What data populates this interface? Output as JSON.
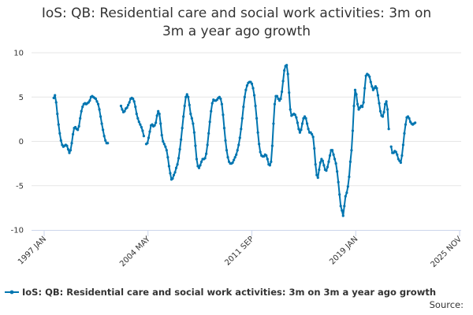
{
  "chart_data": {
    "type": "line",
    "title": "IoS: QB: Residential care and social work activities: 3m on 3m a year ago growth",
    "xlabel": "",
    "ylabel": "",
    "x_tick_labels": [
      "1997 JAN",
      "2004 MAY",
      "2011 SEP",
      "2019 JAN",
      "2025 NOV"
    ],
    "y_ticks": [
      10,
      5,
      0,
      -5,
      -10
    ],
    "ylim": [
      -10,
      10
    ],
    "xlim": [
      "1997-01",
      "2025-11"
    ],
    "grid": true,
    "legend_position": "bottom",
    "source_label": "Source:",
    "series": [
      {
        "name": "IoS: QB: Residential care and social work activities: 3m on 3m a year ago growth",
        "color": "#0075b0",
        "points": [
          [
            "1997-09",
            4.9
          ],
          [
            "1997-10",
            5.2
          ],
          [
            "1997-11",
            4.4
          ],
          [
            "1997-12",
            3.1
          ],
          [
            "1998-01",
            1.9
          ],
          [
            "1998-02",
            0.9
          ],
          [
            "1998-03",
            0.1
          ],
          [
            "1998-04",
            -0.4
          ],
          [
            "1998-05",
            -0.6
          ],
          [
            "1998-06",
            -0.5
          ],
          [
            "1998-07",
            -0.4
          ],
          [
            "1998-08",
            -0.5
          ],
          [
            "1998-09",
            -0.9
          ],
          [
            "1998-10",
            -1.3
          ],
          [
            "1998-11",
            -1.0
          ],
          [
            "1998-12",
            -0.2
          ],
          [
            "1999-01",
            0.8
          ],
          [
            "1999-02",
            1.5
          ],
          [
            "1999-03",
            1.6
          ],
          [
            "1999-04",
            1.4
          ],
          [
            "1999-05",
            1.3
          ],
          [
            "1999-06",
            1.7
          ],
          [
            "1999-07",
            2.6
          ],
          [
            "1999-08",
            3.4
          ],
          [
            "1999-09",
            3.9
          ],
          [
            "1999-10",
            4.2
          ],
          [
            "1999-11",
            4.3
          ],
          [
            "1999-12",
            4.2
          ],
          [
            "2000-01",
            4.3
          ],
          [
            "2000-02",
            4.4
          ],
          [
            "2000-03",
            4.6
          ],
          [
            "2000-04",
            5.0
          ],
          [
            "2000-05",
            5.1
          ],
          [
            "2000-06",
            5.0
          ],
          [
            "2000-07",
            4.9
          ],
          [
            "2000-08",
            4.8
          ],
          [
            "2000-09",
            4.5
          ],
          [
            "2000-10",
            4.2
          ],
          [
            "2000-11",
            3.6
          ],
          [
            "2000-12",
            2.8
          ],
          [
            "2001-01",
            2.0
          ],
          [
            "2001-02",
            1.3
          ],
          [
            "2001-03",
            0.6
          ],
          [
            "2001-04",
            0.1
          ],
          [
            "2001-05",
            -0.2
          ],
          [
            "2001-06",
            -0.2
          ],
          [
            "2002-05",
            4.0
          ],
          [
            "2002-06",
            3.6
          ],
          [
            "2002-07",
            3.3
          ],
          [
            "2002-08",
            3.4
          ],
          [
            "2002-09",
            3.7
          ],
          [
            "2002-10",
            3.8
          ],
          [
            "2002-11",
            4.1
          ],
          [
            "2002-12",
            4.4
          ],
          [
            "2003-01",
            4.8
          ],
          [
            "2003-02",
            4.9
          ],
          [
            "2003-03",
            4.8
          ],
          [
            "2003-04",
            4.5
          ],
          [
            "2003-05",
            3.9
          ],
          [
            "2003-06",
            3.1
          ],
          [
            "2003-07",
            2.6
          ],
          [
            "2003-08",
            2.2
          ],
          [
            "2003-09",
            1.9
          ],
          [
            "2003-10",
            1.6
          ],
          [
            "2003-11",
            1.2
          ],
          [
            "2003-12",
            0.6
          ],
          [
            "2004-02",
            -0.3
          ],
          [
            "2004-03",
            -0.2
          ],
          [
            "2004-04",
            0.4
          ],
          [
            "2004-05",
            1.1
          ],
          [
            "2004-06",
            1.8
          ],
          [
            "2004-07",
            1.9
          ],
          [
            "2004-08",
            1.7
          ],
          [
            "2004-09",
            1.8
          ],
          [
            "2004-10",
            2.1
          ],
          [
            "2004-11",
            2.9
          ],
          [
            "2004-12",
            3.4
          ],
          [
            "2005-01",
            3.1
          ],
          [
            "2005-02",
            2.0
          ],
          [
            "2005-03",
            0.7
          ],
          [
            "2005-04",
            0.0
          ],
          [
            "2005-05",
            -0.3
          ],
          [
            "2005-06",
            -0.6
          ],
          [
            "2005-07",
            -1.0
          ],
          [
            "2005-08",
            -1.8
          ],
          [
            "2005-09",
            -2.8
          ],
          [
            "2005-10",
            -3.6
          ],
          [
            "2005-11",
            -4.3
          ],
          [
            "2005-12",
            -4.2
          ],
          [
            "2006-01",
            -3.8
          ],
          [
            "2006-02",
            -3.5
          ],
          [
            "2006-03",
            -3.0
          ],
          [
            "2006-04",
            -2.6
          ],
          [
            "2006-05",
            -1.9
          ],
          [
            "2006-06",
            -0.9
          ],
          [
            "2006-07",
            0.2
          ],
          [
            "2006-08",
            1.5
          ],
          [
            "2006-09",
            2.8
          ],
          [
            "2006-10",
            4.0
          ],
          [
            "2006-11",
            5.0
          ],
          [
            "2006-12",
            5.3
          ],
          [
            "2007-01",
            5.0
          ],
          [
            "2007-02",
            4.1
          ],
          [
            "2007-03",
            3.1
          ],
          [
            "2007-04",
            2.6
          ],
          [
            "2007-05",
            2.0
          ],
          [
            "2007-06",
            1.0
          ],
          [
            "2007-07",
            -0.5
          ],
          [
            "2007-08",
            -2.0
          ],
          [
            "2007-09",
            -2.8
          ],
          [
            "2007-10",
            -3.0
          ],
          [
            "2007-11",
            -2.7
          ],
          [
            "2007-12",
            -2.3
          ],
          [
            "2008-01",
            -2.0
          ],
          [
            "2008-02",
            -2.0
          ],
          [
            "2008-03",
            -1.9
          ],
          [
            "2008-04",
            -1.4
          ],
          [
            "2008-05",
            -0.4
          ],
          [
            "2008-06",
            0.9
          ],
          [
            "2008-07",
            2.2
          ],
          [
            "2008-08",
            3.4
          ],
          [
            "2008-09",
            4.3
          ],
          [
            "2008-10",
            4.7
          ],
          [
            "2008-11",
            4.6
          ],
          [
            "2008-12",
            4.6
          ],
          [
            "2009-01",
            4.7
          ],
          [
            "2009-02",
            4.9
          ],
          [
            "2009-03",
            5.0
          ],
          [
            "2009-04",
            4.8
          ],
          [
            "2009-05",
            4.2
          ],
          [
            "2009-06",
            3.0
          ],
          [
            "2009-07",
            1.5
          ],
          [
            "2009-08",
            0.1
          ],
          [
            "2009-09",
            -1.0
          ],
          [
            "2009-10",
            -1.8
          ],
          [
            "2009-11",
            -2.3
          ],
          [
            "2009-12",
            -2.5
          ],
          [
            "2010-01",
            -2.5
          ],
          [
            "2010-02",
            -2.4
          ],
          [
            "2010-03",
            -2.1
          ],
          [
            "2010-04",
            -1.8
          ],
          [
            "2010-05",
            -1.5
          ],
          [
            "2010-06",
            -1.0
          ],
          [
            "2010-07",
            -0.4
          ],
          [
            "2010-08",
            0.4
          ],
          [
            "2010-09",
            1.4
          ],
          [
            "2010-10",
            2.6
          ],
          [
            "2010-11",
            3.9
          ],
          [
            "2010-12",
            5.0
          ],
          [
            "2011-01",
            5.8
          ],
          [
            "2011-02",
            6.3
          ],
          [
            "2011-03",
            6.6
          ],
          [
            "2011-04",
            6.7
          ],
          [
            "2011-05",
            6.7
          ],
          [
            "2011-06",
            6.5
          ],
          [
            "2011-07",
            6.0
          ],
          [
            "2011-08",
            5.2
          ],
          [
            "2011-09",
            4.0
          ],
          [
            "2011-10",
            2.6
          ],
          [
            "2011-11",
            1.0
          ],
          [
            "2011-12",
            -0.3
          ],
          [
            "2012-01",
            -1.2
          ],
          [
            "2012-02",
            -1.6
          ],
          [
            "2012-03",
            -1.7
          ],
          [
            "2012-04",
            -1.7
          ],
          [
            "2012-05",
            -1.5
          ],
          [
            "2012-06",
            -1.6
          ],
          [
            "2012-07",
            -2.0
          ],
          [
            "2012-08",
            -2.6
          ],
          [
            "2012-09",
            -2.7
          ],
          [
            "2012-10",
            -2.3
          ],
          [
            "2012-11",
            -0.5
          ],
          [
            "2012-12",
            2.0
          ],
          [
            "2013-01",
            4.2
          ],
          [
            "2013-02",
            5.1
          ],
          [
            "2013-03",
            5.1
          ],
          [
            "2013-04",
            4.8
          ],
          [
            "2013-05",
            4.6
          ],
          [
            "2013-06",
            4.8
          ],
          [
            "2013-07",
            5.6
          ],
          [
            "2013-08",
            6.8
          ],
          [
            "2013-09",
            8.0
          ],
          [
            "2013-10",
            8.5
          ],
          [
            "2013-11",
            8.6
          ],
          [
            "2013-12",
            7.6
          ],
          [
            "2014-01",
            5.5
          ],
          [
            "2014-02",
            3.6
          ],
          [
            "2014-03",
            2.9
          ],
          [
            "2014-04",
            3.0
          ],
          [
            "2014-05",
            3.1
          ],
          [
            "2014-06",
            3.0
          ],
          [
            "2014-07",
            2.7
          ],
          [
            "2014-08",
            2.1
          ],
          [
            "2014-09",
            1.4
          ],
          [
            "2014-10",
            1.0
          ],
          [
            "2014-11",
            1.3
          ],
          [
            "2014-12",
            2.0
          ],
          [
            "2015-01",
            2.6
          ],
          [
            "2015-02",
            2.8
          ],
          [
            "2015-03",
            2.6
          ],
          [
            "2015-04",
            2.0
          ],
          [
            "2015-05",
            1.4
          ],
          [
            "2015-06",
            1.0
          ],
          [
            "2015-07",
            1.0
          ],
          [
            "2015-08",
            0.8
          ],
          [
            "2015-09",
            0.5
          ],
          [
            "2015-10",
            -0.8
          ],
          [
            "2015-11",
            -2.6
          ],
          [
            "2015-12",
            -3.8
          ],
          [
            "2016-01",
            -4.1
          ],
          [
            "2016-02",
            -3.2
          ],
          [
            "2016-03",
            -2.4
          ],
          [
            "2016-04",
            -2.0
          ],
          [
            "2016-05",
            -2.2
          ],
          [
            "2016-06",
            -2.7
          ],
          [
            "2016-07",
            -3.2
          ],
          [
            "2016-08",
            -3.3
          ],
          [
            "2016-09",
            -2.9
          ],
          [
            "2016-10",
            -2.3
          ],
          [
            "2016-11",
            -1.6
          ],
          [
            "2016-12",
            -1.0
          ],
          [
            "2017-01",
            -1.0
          ],
          [
            "2017-02",
            -1.5
          ],
          [
            "2017-03",
            -2.0
          ],
          [
            "2017-04",
            -2.5
          ],
          [
            "2017-05",
            -3.4
          ],
          [
            "2017-06",
            -4.6
          ],
          [
            "2017-07",
            -6.0
          ],
          [
            "2017-08",
            -7.3
          ],
          [
            "2017-09",
            -7.8
          ],
          [
            "2017-10",
            -8.4
          ],
          [
            "2017-11",
            -7.3
          ],
          [
            "2017-12",
            -6.2
          ],
          [
            "2018-01",
            -5.8
          ],
          [
            "2018-02",
            -5.1
          ],
          [
            "2018-03",
            -4.0
          ],
          [
            "2018-04",
            -2.3
          ],
          [
            "2018-05",
            -1.0
          ],
          [
            "2018-06",
            1.2
          ],
          [
            "2018-07",
            4.0
          ],
          [
            "2018-08",
            5.8
          ],
          [
            "2018-09",
            5.3
          ],
          [
            "2018-10",
            4.2
          ],
          [
            "2018-11",
            3.6
          ],
          [
            "2018-12",
            3.8
          ],
          [
            "2019-01",
            4.0
          ],
          [
            "2019-02",
            3.9
          ],
          [
            "2019-03",
            4.4
          ],
          [
            "2019-04",
            6.0
          ],
          [
            "2019-05",
            7.4
          ],
          [
            "2019-06",
            7.6
          ],
          [
            "2019-07",
            7.5
          ],
          [
            "2019-08",
            7.3
          ],
          [
            "2019-09",
            6.7
          ],
          [
            "2019-10",
            6.2
          ],
          [
            "2019-11",
            5.8
          ],
          [
            "2019-12",
            6.0
          ],
          [
            "2020-01",
            6.2
          ],
          [
            "2020-02",
            6.0
          ],
          [
            "2020-03",
            5.2
          ],
          [
            "2020-04",
            4.3
          ],
          [
            "2020-05",
            3.4
          ],
          [
            "2020-06",
            2.9
          ],
          [
            "2020-07",
            2.8
          ],
          [
            "2020-08",
            3.3
          ],
          [
            "2020-09",
            4.2
          ],
          [
            "2020-10",
            4.5
          ],
          [
            "2020-11",
            3.6
          ],
          [
            "2020-12",
            1.4
          ],
          [
            "2021-02",
            -0.6
          ],
          [
            "2021-03",
            -1.3
          ],
          [
            "2021-04",
            -1.3
          ],
          [
            "2021-05",
            -1.1
          ],
          [
            "2021-06",
            -1.2
          ],
          [
            "2021-07",
            -1.5
          ],
          [
            "2021-08",
            -2.0
          ],
          [
            "2021-09",
            -2.2
          ],
          [
            "2021-10",
            -2.4
          ],
          [
            "2021-11",
            -1.6
          ],
          [
            "2021-12",
            -0.4
          ],
          [
            "2022-01",
            0.9
          ],
          [
            "2022-02",
            1.9
          ],
          [
            "2022-03",
            2.7
          ],
          [
            "2022-04",
            2.8
          ],
          [
            "2022-05",
            2.6
          ],
          [
            "2022-06",
            2.2
          ],
          [
            "2022-07",
            2.0
          ],
          [
            "2022-08",
            1.9
          ],
          [
            "2022-09",
            2.0
          ],
          [
            "2022-10",
            2.1
          ]
        ]
      }
    ]
  }
}
